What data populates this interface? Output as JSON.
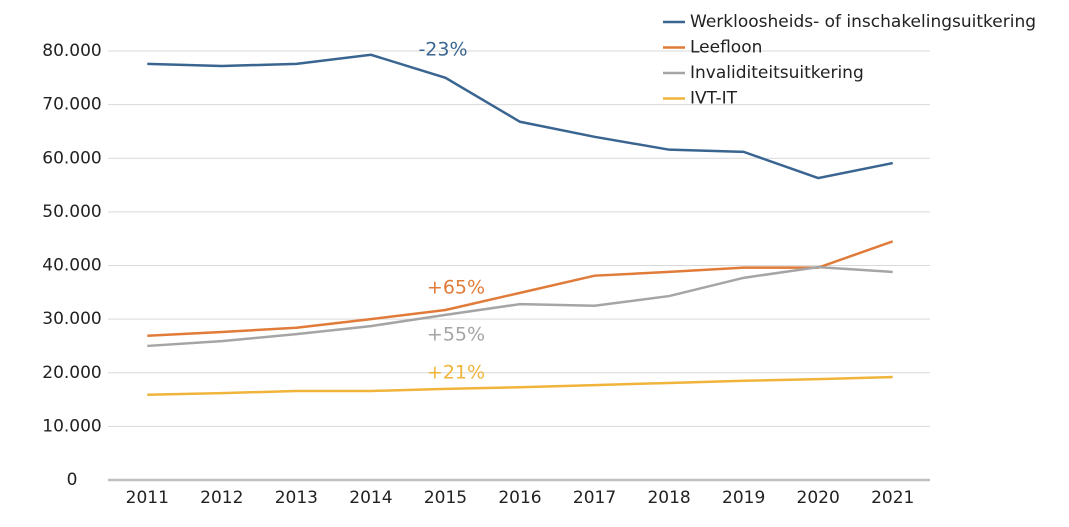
{
  "chart_data": {
    "type": "line",
    "categories": [
      "2011",
      "2012",
      "2013",
      "2014",
      "2015",
      "2016",
      "2017",
      "2018",
      "2019",
      "2020",
      "2021"
    ],
    "series": [
      {
        "name": "Werkloosheids- of inschakelingsuitkering",
        "color": "#3a6591",
        "values": [
          77600,
          77200,
          77600,
          79300,
          75000,
          66800,
          64000,
          61600,
          61200,
          56300,
          59100
        ]
      },
      {
        "name": "Leefloon",
        "color": "#e07b39",
        "values": [
          26900,
          27600,
          28400,
          30000,
          31700,
          34900,
          38100,
          38800,
          39600,
          39600,
          44500
        ]
      },
      {
        "name": "Invaliditeitsuitkering",
        "color": "#a5a5a5",
        "values": [
          25000,
          25900,
          27200,
          28700,
          30800,
          32800,
          32500,
          34300,
          37700,
          39700,
          38800
        ]
      },
      {
        "name": "IVT-IT",
        "color": "#f0b43b",
        "values": [
          15900,
          16200,
          16600,
          16600,
          17000,
          17300,
          17700,
          18100,
          18500,
          18800,
          19200
        ]
      }
    ],
    "annotations": [
      {
        "text": "-23%",
        "color": "#3a6591"
      },
      {
        "text": "+65%",
        "color": "#e07b39"
      },
      {
        "text": "+55%",
        "color": "#a5a5a5"
      },
      {
        "text": "+21%",
        "color": "#f0b43b"
      }
    ],
    "ylim": [
      0,
      80000
    ],
    "yticks": [
      0,
      {
        "value": 10000,
        "label": "10.000"
      },
      {
        "value": 20000,
        "label": "20.000"
      },
      {
        "value": 30000,
        "label": "30.000"
      },
      {
        "value": 40000,
        "label": "40.000"
      },
      {
        "value": 50000,
        "label": "50.000"
      },
      {
        "value": 60000,
        "label": "60.000"
      },
      {
        "value": 70000,
        "label": "70.000"
      },
      {
        "value": 80000,
        "label": "80.000"
      }
    ],
    "grid": true,
    "legend": "top-right"
  }
}
